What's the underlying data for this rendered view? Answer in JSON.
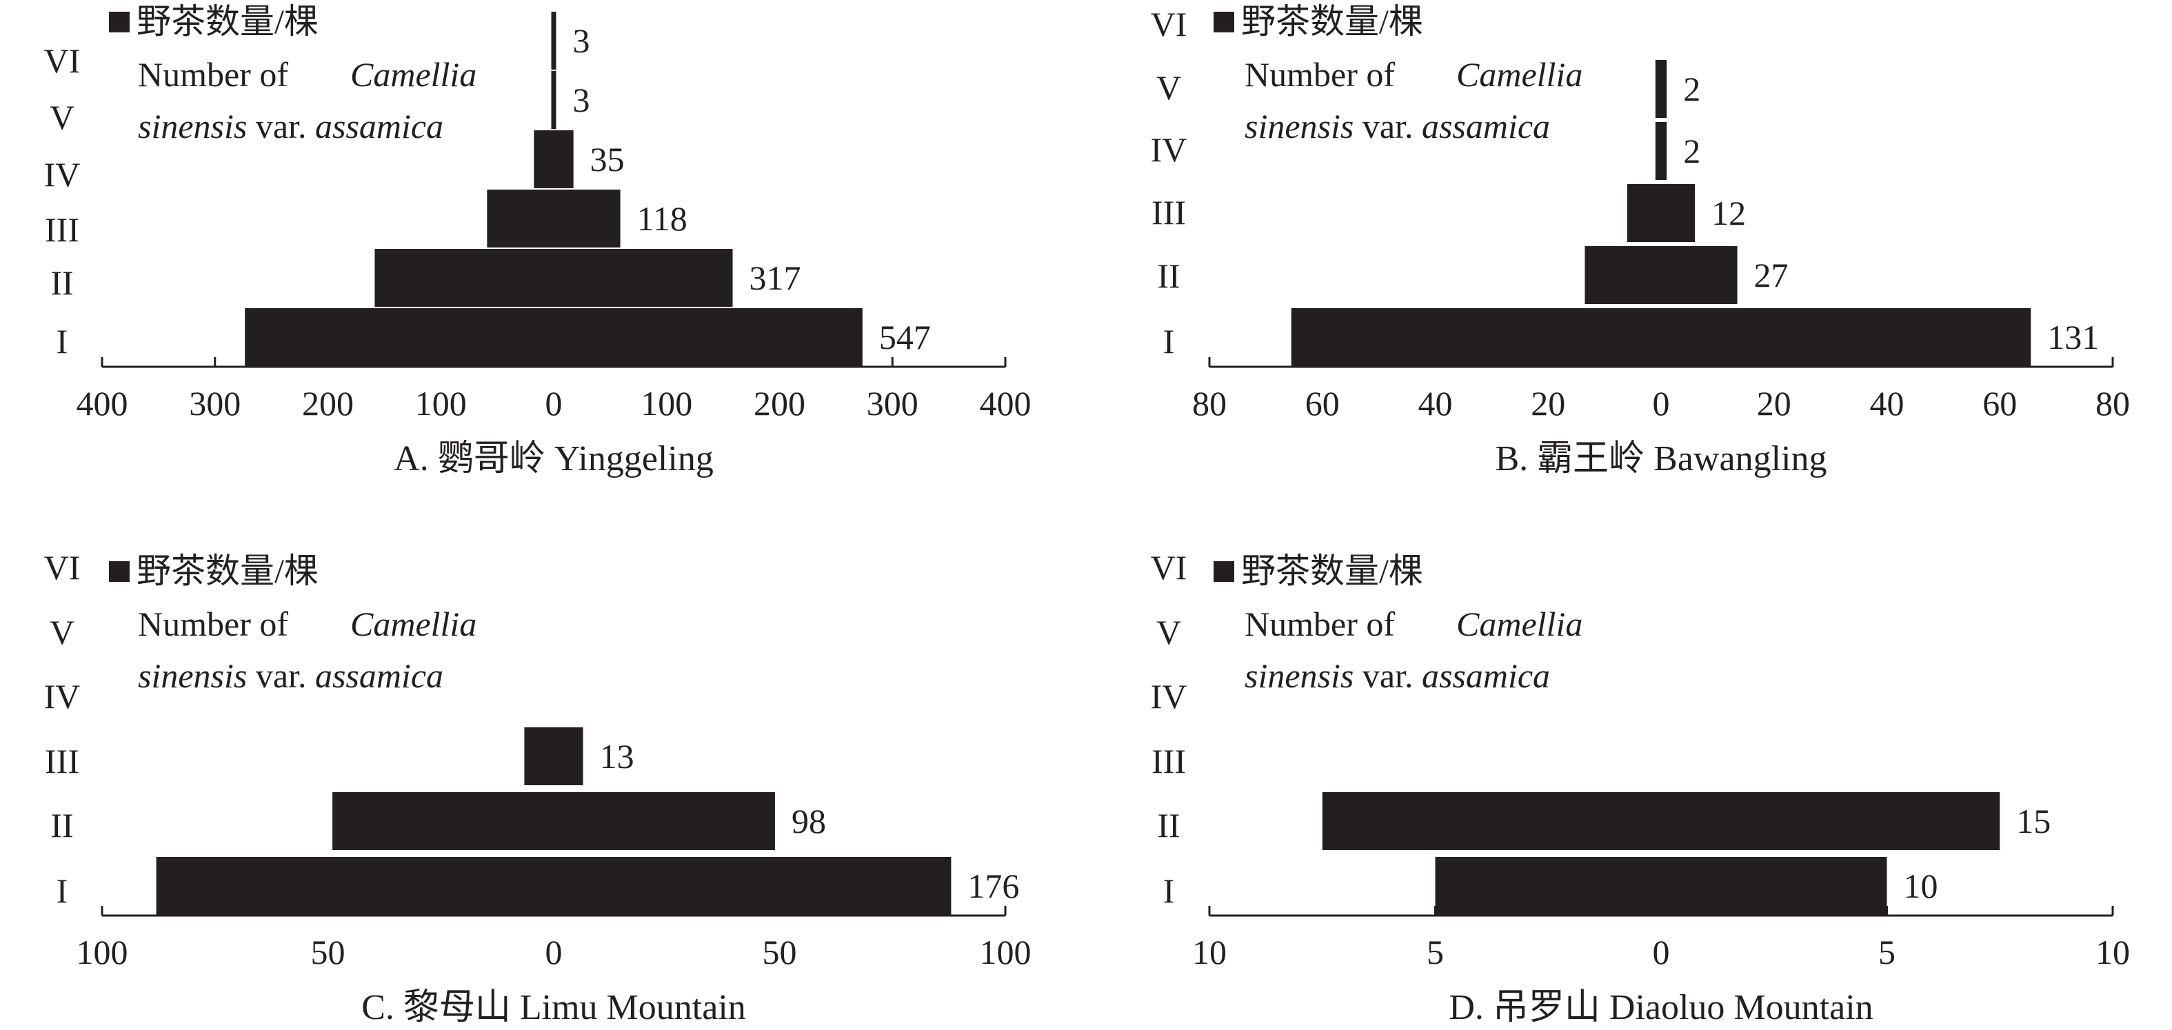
{
  "chart_data": [
    {
      "type": "bar",
      "caption": "A. 鹦哥岭 Yinggeling",
      "categories": [
        "I",
        "II",
        "III",
        "IV",
        "V",
        "VI"
      ],
      "values": [
        547,
        317,
        118,
        35,
        3,
        3
      ],
      "value_labels": [
        "547",
        "317",
        "118",
        "35",
        "3",
        "3"
      ],
      "tick_labels": [
        "400",
        "300",
        "200",
        "100",
        "0",
        "100",
        "200",
        "300",
        "400"
      ],
      "xlim": [
        -400,
        400
      ],
      "legend": {
        "zh": "野茶数量/棵",
        "line1": "Number of",
        "line1_italic": "Camellia",
        "line2_italic_a": "sinensis",
        "line2": "var.",
        "line2_italic_b": "assamica"
      }
    },
    {
      "type": "bar",
      "caption": "B. 霸王岭 Bawangling",
      "categories": [
        "I",
        "II",
        "III",
        "IV",
        "V",
        "VI"
      ],
      "values": [
        131,
        27,
        12,
        2,
        2,
        0
      ],
      "value_labels": [
        "131",
        "27",
        "12",
        "2",
        "2",
        ""
      ],
      "tick_labels": [
        "80",
        "60",
        "40",
        "20",
        "0",
        "20",
        "40",
        "60",
        "80"
      ],
      "xlim": [
        -80,
        80
      ],
      "legend": {
        "zh": "野茶数量/棵",
        "line1": "Number of",
        "line1_italic": "Camellia",
        "line2_italic_a": "sinensis",
        "line2": "var.",
        "line2_italic_b": "assamica"
      }
    },
    {
      "type": "bar",
      "caption": "C. 黎母山 Limu Mountain",
      "categories": [
        "I",
        "II",
        "III",
        "IV",
        "V",
        "VI"
      ],
      "values": [
        176,
        98,
        13,
        0,
        0,
        0
      ],
      "value_labels": [
        "176",
        "98",
        "13",
        "",
        "",
        ""
      ],
      "tick_labels": [
        "100",
        "50",
        "0",
        "50",
        "100"
      ],
      "xlim": [
        -100,
        100
      ],
      "legend": {
        "zh": "野茶数量/棵",
        "line1": "Number of",
        "line1_italic": "Camellia",
        "line2_italic_a": "sinensis",
        "line2": "var.",
        "line2_italic_b": "assamica"
      }
    },
    {
      "type": "bar",
      "caption": "D. 吊罗山 Diaoluo Mountain",
      "categories": [
        "I",
        "II",
        "III",
        "IV",
        "V",
        "VI"
      ],
      "values": [
        10,
        15,
        0,
        0,
        0,
        0
      ],
      "value_labels": [
        "10",
        "15",
        "",
        "",
        "",
        ""
      ],
      "tick_labels": [
        "10",
        "5",
        "0",
        "5",
        "10"
      ],
      "xlim": [
        -10,
        10
      ],
      "legend": {
        "zh": "野茶数量/棵",
        "line1": "Number of",
        "line1_italic": "Camellia",
        "line2_italic_a": "sinensis",
        "line2": "var.",
        "line2_italic_b": "assamica"
      }
    }
  ],
  "colors": {
    "bar": "#231f20",
    "axis": "#231f20",
    "text": "#231f20"
  }
}
